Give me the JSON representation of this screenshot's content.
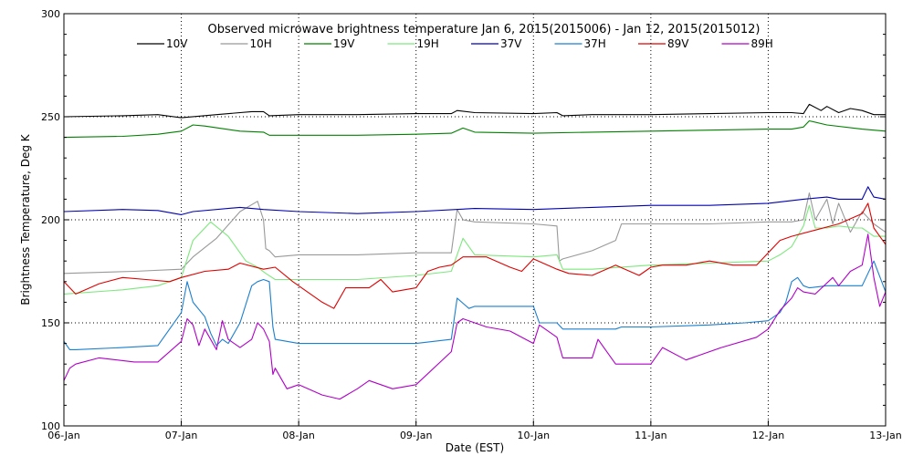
{
  "chart_data": {
    "type": "line",
    "title": "Observed microwave brightness temperature Jan  6, 2015(2015006) - Jan 12, 2015(2015012)",
    "xlabel": "Date (EST)",
    "ylabel": "Brightness Temperature, Deg K",
    "xlim": [
      0,
      7
    ],
    "ylim": [
      100,
      300
    ],
    "x_ticks": [
      {
        "value": 0,
        "label": "06-Jan"
      },
      {
        "value": 1,
        "label": "07-Jan"
      },
      {
        "value": 2,
        "label": "08-Jan"
      },
      {
        "value": 3,
        "label": "09-Jan"
      },
      {
        "value": 4,
        "label": "10-Jan"
      },
      {
        "value": 5,
        "label": "11-Jan"
      },
      {
        "value": 6,
        "label": "12-Jan"
      },
      {
        "value": 7,
        "label": "13-Jan"
      }
    ],
    "y_ticks": [
      {
        "value": 100,
        "label": "100"
      },
      {
        "value": 150,
        "label": "150"
      },
      {
        "value": 200,
        "label": "200"
      },
      {
        "value": 250,
        "label": "250"
      },
      {
        "value": 300,
        "label": "300"
      }
    ],
    "grid": "dotted at each tick",
    "legend_position": "top",
    "series": [
      {
        "name": "10V",
        "color": "#000000",
        "x": [
          0,
          0.5,
          0.8,
          1.0,
          1.3,
          1.6,
          1.7,
          1.75,
          2.0,
          2.5,
          3.0,
          3.3,
          3.35,
          3.5,
          4.0,
          4.2,
          4.25,
          4.5,
          5.0,
          5.5,
          6.0,
          6.2,
          6.3,
          6.35,
          6.45,
          6.5,
          6.6,
          6.7,
          6.8,
          6.9,
          7.0
        ],
        "y": [
          250,
          250.5,
          251,
          249.5,
          251,
          252.5,
          252.5,
          250.5,
          251,
          251,
          251.5,
          251.5,
          253,
          252,
          251.5,
          252,
          250.5,
          251,
          251,
          251.5,
          252,
          252,
          251.5,
          256,
          253,
          255,
          252,
          254,
          253,
          251,
          251
        ]
      },
      {
        "name": "10H",
        "color": "#999999",
        "x": [
          0,
          0.6,
          1.0,
          1.1,
          1.3,
          1.5,
          1.65,
          1.7,
          1.72,
          1.75,
          1.8,
          2.0,
          2.5,
          3.0,
          3.3,
          3.35,
          3.4,
          3.5,
          4.0,
          4.2,
          4.22,
          4.25,
          4.5,
          4.7,
          4.75,
          5.0,
          5.5,
          6.0,
          6.2,
          6.3,
          6.35,
          6.4,
          6.5,
          6.55,
          6.6,
          6.7,
          6.8,
          6.9,
          7.0
        ],
        "y": [
          174,
          175,
          176,
          182,
          191,
          204,
          209,
          200,
          186,
          185,
          182,
          183,
          183,
          184,
          184,
          205,
          200,
          199,
          198,
          197,
          180,
          181,
          185,
          190,
          198,
          198,
          198,
          199,
          199,
          200,
          213,
          200,
          210,
          198,
          208,
          194,
          204,
          198,
          194
        ]
      },
      {
        "name": "19V",
        "color": "#008000",
        "x": [
          0,
          0.5,
          0.8,
          1.0,
          1.1,
          1.2,
          1.5,
          1.7,
          1.75,
          2.0,
          2.5,
          3.0,
          3.3,
          3.4,
          3.5,
          4.0,
          4.5,
          5.0,
          5.5,
          6.0,
          6.2,
          6.3,
          6.35,
          6.5,
          6.8,
          7.0
        ],
        "y": [
          240,
          240.5,
          241.5,
          243,
          246,
          245.5,
          243,
          242.5,
          241,
          241,
          241,
          241.5,
          242,
          244.5,
          242.5,
          242,
          242.5,
          243,
          243.5,
          244,
          244,
          245,
          248,
          246,
          244,
          243
        ]
      },
      {
        "name": "19H",
        "color": "#7de87d",
        "x": [
          0,
          0.5,
          0.8,
          1.0,
          1.1,
          1.25,
          1.4,
          1.55,
          1.65,
          1.72,
          1.8,
          2.0,
          2.5,
          3.0,
          3.3,
          3.4,
          3.5,
          4.0,
          4.2,
          4.25,
          4.5,
          5.0,
          5.5,
          6.0,
          6.1,
          6.2,
          6.3,
          6.35,
          6.4,
          6.5,
          6.6,
          6.75,
          6.8,
          6.9,
          7.0
        ],
        "y": [
          164,
          166,
          168,
          172,
          190,
          199,
          192,
          180,
          177,
          174,
          171,
          171,
          171,
          173,
          175,
          191,
          183,
          182,
          183,
          176,
          176,
          178,
          179,
          180,
          183,
          187,
          197,
          207,
          196,
          196,
          197,
          196,
          196,
          192,
          192
        ]
      },
      {
        "name": "37V",
        "color": "#0000b0",
        "x": [
          0,
          0.5,
          0.8,
          1.0,
          1.1,
          1.5,
          1.7,
          2.0,
          2.5,
          3.0,
          3.5,
          4.0,
          4.5,
          5.0,
          5.5,
          6.0,
          6.3,
          6.5,
          6.6,
          6.8,
          6.85,
          6.9,
          7.0
        ],
        "y": [
          204,
          205,
          204.5,
          202.5,
          204,
          206,
          205,
          204,
          203,
          204,
          205.5,
          205,
          206,
          207,
          207,
          208,
          210,
          211,
          210,
          210,
          216,
          211,
          210
        ]
      },
      {
        "name": "37H",
        "color": "#1a7fcf",
        "x": [
          0,
          0.05,
          0.1,
          0.5,
          0.8,
          1.0,
          1.05,
          1.1,
          1.2,
          1.25,
          1.3,
          1.35,
          1.4,
          1.5,
          1.6,
          1.65,
          1.7,
          1.75,
          1.78,
          1.8,
          2.0,
          2.3,
          2.6,
          3.0,
          3.3,
          3.35,
          3.45,
          3.5,
          3.8,
          4.0,
          4.05,
          4.2,
          4.25,
          4.5,
          4.7,
          4.75,
          5.0,
          5.5,
          5.8,
          6.0,
          6.1,
          6.15,
          6.2,
          6.25,
          6.3,
          6.35,
          6.5,
          6.8,
          6.9,
          7.0
        ],
        "y": [
          141,
          137,
          137,
          138,
          139,
          155,
          170,
          160,
          153,
          145,
          139,
          142,
          140,
          150,
          168,
          170,
          171,
          170,
          148,
          142,
          140,
          140,
          140,
          140,
          142,
          162,
          157,
          158,
          158,
          158,
          150,
          150,
          147,
          147,
          147,
          148,
          148,
          149,
          150,
          151,
          155,
          160,
          170,
          172,
          168,
          167,
          168,
          168,
          180,
          165
        ]
      },
      {
        "name": "89V",
        "color": "#e00000",
        "x": [
          0,
          0.1,
          0.3,
          0.5,
          0.7,
          0.9,
          1.0,
          1.2,
          1.4,
          1.5,
          1.7,
          1.8,
          1.95,
          2.2,
          2.3,
          2.4,
          2.6,
          2.7,
          2.8,
          3.0,
          3.1,
          3.2,
          3.3,
          3.4,
          3.5,
          3.6,
          3.8,
          3.9,
          4.0,
          4.2,
          4.3,
          4.5,
          4.7,
          4.9,
          5.0,
          5.1,
          5.3,
          5.5,
          5.7,
          5.9,
          6.0,
          6.1,
          6.2,
          6.4,
          6.6,
          6.8,
          6.85,
          6.9,
          7.0
        ],
        "y": [
          170,
          164,
          169,
          172,
          171,
          170,
          172,
          175,
          176,
          179,
          176,
          177,
          170,
          160,
          157,
          167,
          167,
          171,
          165,
          167,
          175,
          177,
          178,
          182,
          182,
          182,
          177,
          175,
          181,
          176,
          174,
          173,
          178,
          173,
          177,
          178,
          178,
          180,
          178,
          178,
          184,
          190,
          192,
          195,
          198,
          203,
          208,
          196,
          188
        ]
      },
      {
        "name": "89H",
        "color": "#b000c8",
        "x": [
          0,
          0.05,
          0.1,
          0.3,
          0.6,
          0.8,
          1.0,
          1.05,
          1.1,
          1.15,
          1.2,
          1.3,
          1.35,
          1.4,
          1.5,
          1.6,
          1.65,
          1.7,
          1.75,
          1.78,
          1.8,
          1.9,
          2.0,
          2.2,
          2.35,
          2.5,
          2.6,
          2.8,
          3.0,
          3.3,
          3.35,
          3.4,
          3.6,
          3.8,
          4.0,
          4.05,
          4.2,
          4.25,
          4.5,
          4.55,
          4.7,
          5.0,
          5.1,
          5.3,
          5.6,
          5.9,
          6.0,
          6.1,
          6.2,
          6.25,
          6.3,
          6.4,
          6.55,
          6.6,
          6.7,
          6.8,
          6.85,
          6.9,
          6.95,
          7.0
        ],
        "y": [
          122,
          128,
          130,
          133,
          131,
          131,
          141,
          152,
          149,
          139,
          147,
          137,
          151,
          142,
          138,
          142,
          150,
          147,
          141,
          125,
          128,
          118,
          120,
          115,
          113,
          118,
          122,
          118,
          120,
          136,
          150,
          152,
          148,
          146,
          140,
          149,
          143,
          133,
          133,
          142,
          130,
          130,
          138,
          132,
          138,
          143,
          147,
          156,
          162,
          167,
          165,
          164,
          172,
          168,
          175,
          178,
          193,
          172,
          158,
          165
        ]
      }
    ]
  }
}
